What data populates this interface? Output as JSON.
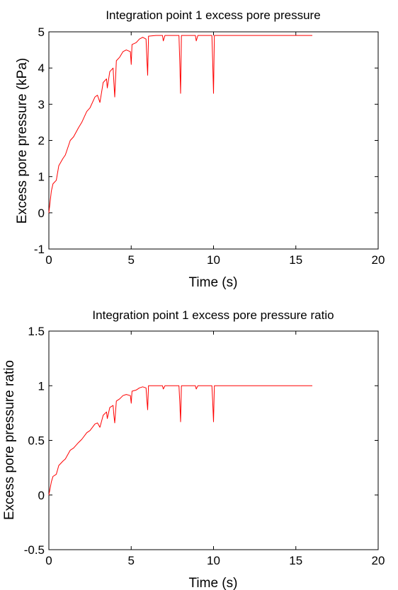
{
  "chart_data": [
    {
      "type": "line",
      "title": "Integration point 1 excess pore pressure",
      "xlabel": "Time (s)",
      "ylabel": "Excess pore pressure (kPa)",
      "xlim": [
        0,
        20
      ],
      "ylim": [
        -1,
        5
      ],
      "xticks": [
        0,
        5,
        10,
        15,
        20
      ],
      "yticks": [
        -1,
        0,
        1,
        2,
        3,
        4,
        5
      ],
      "xtick_labels": [
        "0",
        "5",
        "10",
        "15",
        "20"
      ],
      "ytick_labels": [
        "-1",
        "0",
        "1",
        "2",
        "3",
        "4",
        "5"
      ],
      "grid": false,
      "series": [
        {
          "color": "#ff0000",
          "x": [
            0,
            0.15,
            0.25,
            0.45,
            0.6,
            0.85,
            1.0,
            1.3,
            1.5,
            1.8,
            2.0,
            2.3,
            2.5,
            2.8,
            2.95,
            3.1,
            3.3,
            3.5,
            3.55,
            3.7,
            3.9,
            3.95,
            4.0,
            4.1,
            4.3,
            4.5,
            4.7,
            4.95,
            5.0,
            5.05,
            5.3,
            5.5,
            5.7,
            5.9,
            5.95,
            6.0,
            6.05,
            6.5,
            6.9,
            6.95,
            7.05,
            7.5,
            7.9,
            7.95,
            8.0,
            8.05,
            8.5,
            8.9,
            8.95,
            9.05,
            9.5,
            9.9,
            9.95,
            10.0,
            10.05,
            11,
            13,
            16
          ],
          "y": [
            0,
            0.6,
            0.8,
            0.9,
            1.3,
            1.5,
            1.6,
            2.0,
            2.1,
            2.35,
            2.5,
            2.8,
            2.9,
            3.2,
            3.25,
            3.05,
            3.6,
            3.7,
            3.45,
            3.9,
            4.0,
            3.6,
            3.2,
            4.2,
            4.3,
            4.45,
            4.5,
            4.45,
            4.1,
            4.65,
            4.7,
            4.8,
            4.85,
            4.8,
            4.3,
            3.8,
            4.88,
            4.9,
            4.9,
            4.75,
            4.9,
            4.9,
            4.9,
            4.2,
            3.3,
            4.9,
            4.9,
            4.9,
            4.75,
            4.9,
            4.9,
            4.9,
            4.2,
            3.3,
            4.9,
            4.9,
            4.9,
            4.9
          ]
        }
      ]
    },
    {
      "type": "line",
      "title": "Integration point 1 excess pore pressure ratio",
      "xlabel": "Time (s)",
      "ylabel": "Excess pore pressure ratio",
      "xlim": [
        0,
        20
      ],
      "ylim": [
        -0.5,
        1.5
      ],
      "xticks": [
        0,
        5,
        10,
        15,
        20
      ],
      "yticks": [
        -0.5,
        0,
        0.5,
        1,
        1.5
      ],
      "xtick_labels": [
        "0",
        "5",
        "10",
        "15",
        "20"
      ],
      "ytick_labels": [
        "-0.5",
        "0",
        "0.5",
        "1",
        "1.5"
      ],
      "grid": false,
      "series": [
        {
          "color": "#ff0000",
          "x": [
            0,
            0.15,
            0.25,
            0.45,
            0.6,
            0.85,
            1.0,
            1.3,
            1.5,
            1.8,
            2.0,
            2.3,
            2.5,
            2.8,
            2.95,
            3.1,
            3.3,
            3.5,
            3.55,
            3.7,
            3.9,
            3.95,
            4.0,
            4.1,
            4.3,
            4.5,
            4.7,
            4.95,
            5.0,
            5.05,
            5.3,
            5.5,
            5.7,
            5.9,
            5.95,
            6.0,
            6.05,
            6.5,
            6.9,
            6.95,
            7.05,
            7.5,
            7.9,
            7.95,
            8.0,
            8.05,
            8.5,
            8.9,
            8.95,
            9.05,
            9.5,
            9.9,
            9.95,
            10.0,
            10.05,
            11,
            13,
            16
          ],
          "y": [
            0,
            0.12,
            0.17,
            0.19,
            0.27,
            0.31,
            0.33,
            0.41,
            0.43,
            0.48,
            0.51,
            0.57,
            0.59,
            0.65,
            0.66,
            0.62,
            0.73,
            0.76,
            0.7,
            0.8,
            0.82,
            0.73,
            0.66,
            0.86,
            0.88,
            0.91,
            0.92,
            0.91,
            0.84,
            0.95,
            0.96,
            0.98,
            0.99,
            0.98,
            0.88,
            0.78,
            1.0,
            1.0,
            1.0,
            0.97,
            1.0,
            1.0,
            1.0,
            0.86,
            0.67,
            1.0,
            1.0,
            1.0,
            0.97,
            1.0,
            1.0,
            1.0,
            0.86,
            0.67,
            1.0,
            1.0,
            1.0,
            1.0
          ]
        }
      ]
    }
  ]
}
